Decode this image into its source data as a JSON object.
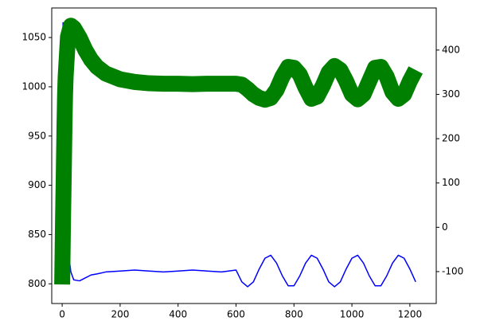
{
  "chart_data": {
    "type": "line",
    "x": [
      0,
      3,
      5,
      8,
      10,
      12,
      20,
      30,
      40,
      60,
      80,
      100,
      120,
      150,
      200,
      250,
      300,
      350,
      400,
      450,
      500,
      550,
      600,
      620,
      640,
      660,
      680,
      700,
      720,
      740,
      760,
      780,
      800,
      820,
      840,
      860,
      880,
      900,
      920,
      940,
      960,
      980,
      1000,
      1020,
      1040,
      1060,
      1080,
      1100,
      1120,
      1140,
      1160,
      1180,
      1200,
      1220
    ],
    "series": [
      {
        "color": "#0000ff",
        "axis": "y",
        "values": [
          857,
          1065,
          1000,
          950,
          920,
          900,
          835,
          812,
          804,
          803,
          806,
          809,
          810,
          812,
          813,
          814,
          813,
          812,
          813,
          814,
          813,
          812,
          814,
          802,
          797,
          802,
          815,
          826,
          829,
          821,
          808,
          798,
          798,
          808,
          821,
          829,
          826,
          815,
          802,
          797,
          802,
          815,
          826,
          829,
          821,
          808,
          798,
          798,
          808,
          821,
          829,
          826,
          815,
          802
        ]
      },
      {
        "color": "#008000",
        "axis": "y2",
        "values": [
          -129,
          20,
          100,
          230,
          300,
          340,
          430,
          455,
          450,
          428,
          400,
          378,
          362,
          347,
          334,
          328,
          325,
          324,
          324,
          323,
          324,
          324,
          324,
          322,
          312,
          300,
          292,
          288,
          292,
          310,
          340,
          362,
          360,
          345,
          315,
          290,
          295,
          320,
          350,
          364,
          355,
          330,
          300,
          289,
          300,
          330,
          360,
          362,
          340,
          305,
          290,
          300,
          330,
          355
        ]
      }
    ],
    "xlim": [
      -36,
      1291
    ],
    "ylim": [
      780,
      1080
    ],
    "y2lim": [
      -172,
      495
    ],
    "xticks": [
      0,
      200,
      400,
      600,
      800,
      1000,
      1200
    ],
    "yticks": [
      800,
      850,
      900,
      950,
      1000,
      1050
    ],
    "y2ticks": [
      -100,
      0,
      100,
      200,
      300,
      400
    ]
  }
}
